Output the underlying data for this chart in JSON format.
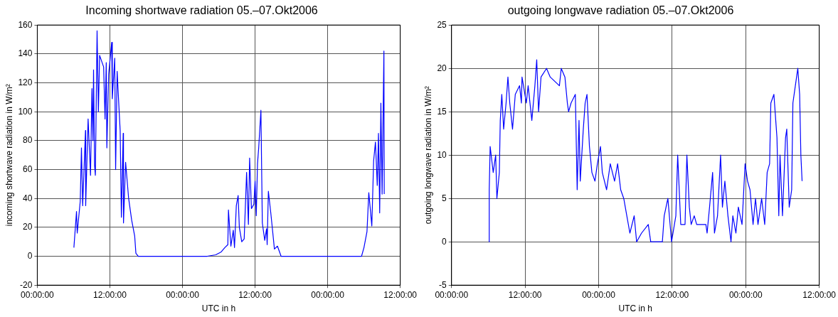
{
  "chart_data": [
    {
      "type": "line",
      "title": "Incoming shortwave radiation 05.–07.Okt2006",
      "xlabel": "UTC in h",
      "ylabel": "incoming shortwave radiation in W/m²",
      "xlim": [
        "2006-10-05T00:00",
        "2006-10-07T12:00"
      ],
      "xticks": [
        {
          "value": "2006-10-05T00:00",
          "label": "00:00:00"
        },
        {
          "value": "2006-10-05T12:00",
          "label": "12:00:00"
        },
        {
          "value": "2006-10-06T00:00",
          "label": "00:00:00"
        },
        {
          "value": "2006-10-06T12:00",
          "label": "12:00:00"
        },
        {
          "value": "2006-10-07T00:00",
          "label": "00:00:00"
        },
        {
          "value": "2006-10-07T12:00",
          "label": "12:00:00"
        }
      ],
      "ylim": [
        -20,
        160
      ],
      "yticks": [
        -20,
        0,
        20,
        40,
        60,
        80,
        100,
        120,
        140,
        160
      ],
      "grid": true,
      "marker": "none",
      "line_style": "solid",
      "x": [
        "2006-10-05T06:03",
        "2006-10-05T06:29",
        "2006-10-05T06:36",
        "2006-10-05T07:06",
        "2006-10-05T07:18",
        "2006-10-05T07:30",
        "2006-10-05T07:58",
        "2006-10-05T08:00",
        "2006-10-05T08:24",
        "2006-10-05T08:48",
        "2006-10-05T09:02",
        "2006-10-05T09:12",
        "2006-10-05T09:18",
        "2006-10-05T09:28",
        "2006-10-05T09:36",
        "2006-10-05T09:53",
        "2006-10-05T10:06",
        "2006-10-05T10:18",
        "2006-10-05T10:58",
        "2006-10-05T11:12",
        "2006-10-05T11:24",
        "2006-10-05T11:30",
        "2006-10-05T11:48",
        "2006-10-05T12:18",
        "2006-10-05T12:24",
        "2006-10-05T12:48",
        "2006-10-05T12:57",
        "2006-10-05T13:12",
        "2006-10-05T13:30",
        "2006-10-05T13:42",
        "2006-10-05T13:54",
        "2006-10-05T14:12",
        "2006-10-05T14:15",
        "2006-10-05T14:36",
        "2006-10-05T15:06",
        "2006-10-05T15:36",
        "2006-10-05T16:06",
        "2006-10-05T16:18",
        "2006-10-05T16:42",
        "2006-10-06T04:06",
        "2006-10-06T05:30",
        "2006-10-06T06:24",
        "2006-10-06T07:00",
        "2006-10-06T07:30",
        "2006-10-06T07:36",
        "2006-10-06T08:00",
        "2006-10-06T08:24",
        "2006-10-06T08:36",
        "2006-10-06T08:54",
        "2006-10-06T09:12",
        "2006-10-06T09:24",
        "2006-10-06T09:48",
        "2006-10-06T10:12",
        "2006-10-06T10:36",
        "2006-10-06T10:54",
        "2006-10-06T11:06",
        "2006-10-06T11:24",
        "2006-10-06T11:48",
        "2006-10-06T12:00",
        "2006-10-06T12:12",
        "2006-10-06T12:24",
        "2006-10-06T12:36",
        "2006-10-06T12:58",
        "2006-10-06T13:12",
        "2006-10-06T13:36",
        "2006-10-06T13:54",
        "2006-10-06T14:00",
        "2006-10-06T14:12",
        "2006-10-06T14:36",
        "2006-10-06T15:12",
        "2006-10-06T15:42",
        "2006-10-06T16:18",
        "2006-10-07T05:36",
        "2006-10-07T06:00",
        "2006-10-07T06:30",
        "2006-10-07T06:48",
        "2006-10-07T07:18",
        "2006-10-07T07:36",
        "2006-10-07T07:54",
        "2006-10-07T08:12",
        "2006-10-07T08:24",
        "2006-10-07T08:36",
        "2006-10-07T08:48",
        "2006-10-07T09:00",
        "2006-10-07T09:18",
        "2006-10-07T09:21"
      ],
      "series": [
        {
          "color": "#0000ff",
          "values": [
            6,
            31,
            16,
            38,
            75,
            35,
            87,
            35,
            95,
            56,
            116,
            80,
            129,
            63,
            56,
            156,
            100,
            139,
            131,
            95,
            134,
            75,
            126,
            148,
            109,
            137,
            60,
            128,
            103,
            87,
            27,
            85,
            23,
            65,
            40,
            25,
            14,
            2,
            0,
            0,
            1,
            3,
            6,
            8,
            32,
            7,
            18,
            6,
            35,
            42,
            20,
            10,
            12,
            58,
            22,
            68,
            33,
            36,
            52,
            28,
            64,
            75,
            101,
            23,
            11,
            19,
            8,
            45,
            30,
            5,
            7,
            0,
            0,
            6,
            17,
            44,
            21,
            66,
            79,
            49,
            85,
            30,
            106,
            43,
            142,
            43
          ]
        }
      ]
    },
    {
      "type": "line",
      "title": "outgoing longwave radiation 05.–07.Okt2006",
      "xlabel": "UTC in h",
      "ylabel": "outgoing longwave radiation in W/m²",
      "xlim": [
        "2006-10-05T00:00",
        "2006-10-07T12:00"
      ],
      "xticks": [
        {
          "value": "2006-10-05T00:00",
          "label": "00:00:00"
        },
        {
          "value": "2006-10-05T12:00",
          "label": "12:00:00"
        },
        {
          "value": "2006-10-06T00:00",
          "label": "00:00:00"
        },
        {
          "value": "2006-10-06T12:00",
          "label": "12:00:00"
        },
        {
          "value": "2006-10-07T00:00",
          "label": "00:00:00"
        },
        {
          "value": "2006-10-07T12:00",
          "label": "12:00:00"
        }
      ],
      "ylim": [
        -5,
        25
      ],
      "yticks": [
        -5,
        0,
        5,
        10,
        15,
        20,
        25
      ],
      "grid": true,
      "marker": "none",
      "line_style": "solid",
      "x": [
        "2006-10-05T06:06",
        "2006-10-05T06:09",
        "2006-10-05T06:18",
        "2006-10-05T06:48",
        "2006-10-05T07:12",
        "2006-10-05T07:24",
        "2006-10-05T07:48",
        "2006-10-05T07:57",
        "2006-10-05T08:12",
        "2006-10-05T08:30",
        "2006-10-05T08:54",
        "2006-10-05T09:12",
        "2006-10-05T09:30",
        "2006-10-05T09:57",
        "2006-10-05T10:24",
        "2006-10-05T11:06",
        "2006-10-05T11:24",
        "2006-10-05T11:30",
        "2006-10-05T12:12",
        "2006-10-05T12:30",
        "2006-10-05T13:06",
        "2006-10-05T13:36",
        "2006-10-05T13:54",
        "2006-10-05T14:12",
        "2006-10-05T14:36",
        "2006-10-05T15:30",
        "2006-10-05T16:06",
        "2006-10-05T17:36",
        "2006-10-05T17:54",
        "2006-10-05T18:30",
        "2006-10-05T18:54",
        "2006-10-05T19:06",
        "2006-10-05T19:30",
        "2006-10-05T20:12",
        "2006-10-05T20:30",
        "2006-10-05T20:48",
        "2006-10-05T21:00",
        "2006-10-05T21:30",
        "2006-10-05T21:48",
        "2006-10-05T22:06",
        "2006-10-05T22:30",
        "2006-10-05T22:54",
        "2006-10-05T23:24",
        "2006-10-05T23:48",
        "2006-10-06T00:18",
        "2006-10-06T00:36",
        "2006-10-06T01:18",
        "2006-10-06T01:54",
        "2006-10-06T02:36",
        "2006-10-06T03:06",
        "2006-10-06T03:36",
        "2006-10-06T04:06",
        "2006-10-06T04:36",
        "2006-10-06T05:06",
        "2006-10-06T05:48",
        "2006-10-06T06:12",
        "2006-10-06T07:00",
        "2006-10-06T08:06",
        "2006-10-06T08:30",
        "2006-10-06T10:24",
        "2006-10-06T10:42",
        "2006-10-06T11:18",
        "2006-10-06T11:54",
        "2006-10-06T12:36",
        "2006-10-06T12:54",
        "2006-10-06T13:24",
        "2006-10-06T14:06",
        "2006-10-06T14:24",
        "2006-10-06T14:48",
        "2006-10-06T15:06",
        "2006-10-06T15:36",
        "2006-10-06T16:00",
        "2006-10-06T17:30",
        "2006-10-06T17:42",
        "2006-10-06T18:06",
        "2006-10-06T18:36",
        "2006-10-06T18:54",
        "2006-10-06T19:24",
        "2006-10-06T19:54",
        "2006-10-06T20:12",
        "2006-10-06T20:36",
        "2006-10-06T21:06",
        "2006-10-06T21:36",
        "2006-10-06T21:54",
        "2006-10-06T22:24",
        "2006-10-06T22:48",
        "2006-10-06T23:24",
        "2006-10-06T23:54",
        "2006-10-07T00:18",
        "2006-10-07T00:42",
        "2006-10-07T01:12",
        "2006-10-07T01:36",
        "2006-10-07T02:00",
        "2006-10-07T02:36",
        "2006-10-07T03:06",
        "2006-10-07T03:30",
        "2006-10-07T03:54",
        "2006-10-07T04:06",
        "2006-10-07T04:36",
        "2006-10-07T04:54",
        "2006-10-07T05:06",
        "2006-10-07T05:24",
        "2006-10-07T05:36",
        "2006-10-07T06:00",
        "2006-10-07T06:30",
        "2006-10-07T06:42",
        "2006-10-07T07:06",
        "2006-10-07T07:30",
        "2006-10-07T07:42",
        "2006-10-07T08:06",
        "2006-10-07T08:30",
        "2006-10-07T08:48",
        "2006-10-07T09:00",
        "2006-10-07T09:12"
      ],
      "series": [
        {
          "color": "#0000ff",
          "values": [
            0,
            6,
            11,
            8,
            10,
            5,
            8,
            14,
            17,
            13,
            16,
            19,
            16,
            13,
            17,
            18,
            16,
            19,
            16,
            18,
            14,
            18,
            21,
            15,
            19,
            20,
            19,
            18,
            20,
            19,
            16,
            15,
            16,
            17,
            6,
            14,
            7,
            13,
            16,
            17,
            11,
            8,
            7,
            9,
            11,
            8,
            6,
            9,
            7,
            9,
            6,
            5,
            3,
            1,
            3,
            0,
            1,
            2,
            0,
            0,
            3,
            5,
            0,
            3,
            10,
            2,
            2,
            10,
            4,
            2,
            3,
            2,
            2,
            1,
            4,
            8,
            1,
            3,
            10,
            4,
            7,
            3,
            0,
            3,
            1,
            4,
            2,
            9,
            7,
            6,
            2,
            5,
            2,
            5,
            2,
            8,
            9,
            16,
            17,
            14,
            12,
            3,
            10,
            3,
            12,
            13,
            4,
            6,
            16,
            18,
            20,
            17,
            10,
            7
          ]
        }
      ]
    }
  ]
}
